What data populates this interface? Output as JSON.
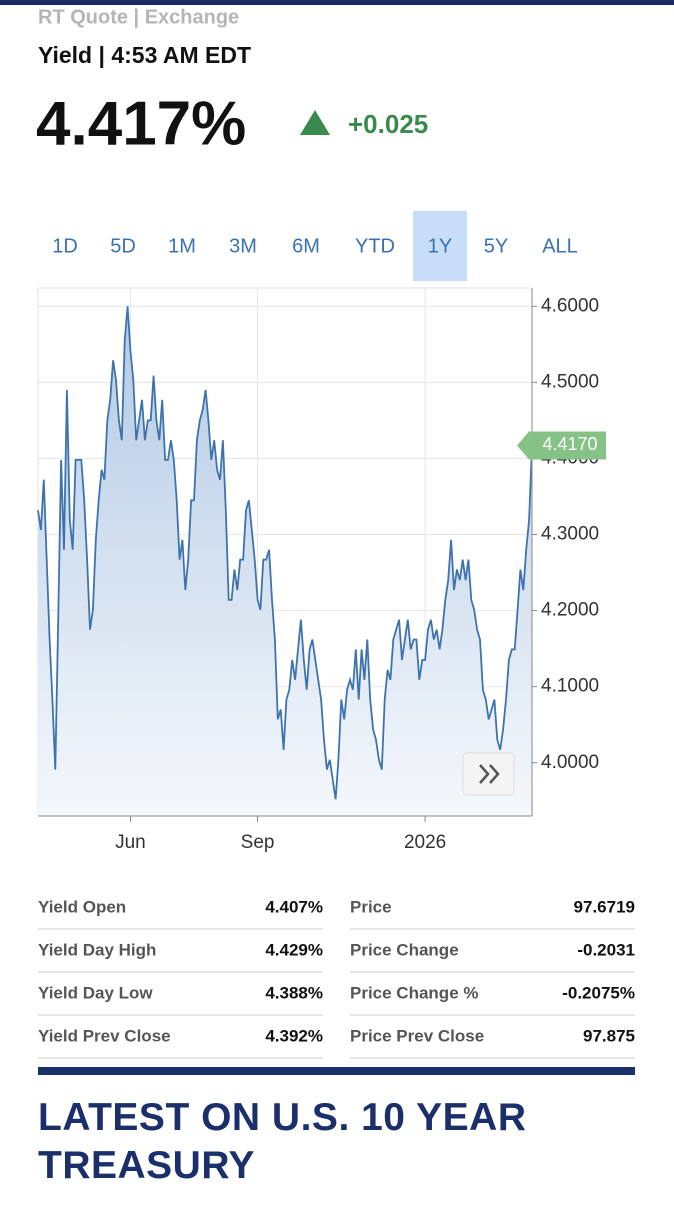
{
  "header": {
    "source": "RT Quote | Exchange",
    "subtitle": "Yield | 4:53 AM EDT",
    "price": "4.417%",
    "change": "+0.025"
  },
  "ranges": {
    "options": [
      "1D",
      "5D",
      "1M",
      "3M",
      "6M",
      "YTD",
      "1Y",
      "5Y",
      "ALL"
    ],
    "selected": 6
  },
  "chart_data": {
    "type": "line",
    "color": "#3f73ad",
    "values": [
      4.332,
      4.306,
      4.372,
      4.267,
      4.162,
      4.083,
      3.991,
      4.188,
      4.398,
      4.28,
      4.49,
      4.319,
      4.28,
      4.398,
      4.398,
      4.398,
      4.345,
      4.267,
      4.175,
      4.201,
      4.293,
      4.345,
      4.385,
      4.372,
      4.45,
      4.477,
      4.529,
      4.503,
      4.45,
      4.424,
      4.555,
      4.6,
      4.542,
      4.503,
      4.424,
      4.45,
      4.477,
      4.424,
      4.45,
      4.45,
      4.509,
      4.45,
      4.424,
      4.477,
      4.398,
      4.398,
      4.424,
      4.398,
      4.345,
      4.267,
      4.293,
      4.227,
      4.267,
      4.345,
      4.345,
      4.424,
      4.45,
      4.464,
      4.49,
      4.45,
      4.398,
      4.424,
      4.385,
      4.372,
      4.424,
      4.332,
      4.214,
      4.214,
      4.254,
      4.227,
      4.267,
      4.267,
      4.332,
      4.345,
      4.306,
      4.267,
      4.214,
      4.201,
      4.267,
      4.267,
      4.28,
      4.214,
      4.162,
      4.057,
      4.07,
      4.017,
      4.083,
      4.096,
      4.135,
      4.109,
      4.149,
      4.188,
      4.135,
      4.096,
      4.149,
      4.162,
      4.135,
      4.109,
      4.083,
      4.03,
      3.991,
      4.004,
      3.978,
      3.952,
      4.004,
      4.083,
      4.057,
      4.096,
      4.109,
      4.096,
      4.149,
      4.083,
      4.149,
      4.109,
      4.162,
      4.083,
      4.044,
      4.03,
      4.004,
      3.991,
      4.083,
      4.122,
      4.109,
      4.162,
      4.175,
      4.188,
      4.135,
      4.162,
      4.188,
      4.149,
      4.162,
      4.162,
      4.109,
      4.135,
      4.135,
      4.175,
      4.188,
      4.162,
      4.175,
      4.149,
      4.175,
      4.214,
      4.24,
      4.293,
      4.227,
      4.254,
      4.24,
      4.267,
      4.24,
      4.267,
      4.214,
      4.201,
      4.175,
      4.162,
      4.096,
      4.083,
      4.057,
      4.07,
      4.083,
      4.03,
      4.017,
      4.044,
      4.083,
      4.135,
      4.149,
      4.149,
      4.201,
      4.254,
      4.227,
      4.28,
      4.319,
      4.417
    ],
    "xlim": [
      0,
      171
    ],
    "xticks": [
      {
        "value": 32,
        "label": "Jun"
      },
      {
        "value": 76,
        "label": "Sep"
      },
      {
        "value": 134,
        "label": "2026"
      }
    ],
    "ylim": [
      3.93,
      4.624
    ],
    "yticks": [
      {
        "value": 4.0,
        "label": "4.0000"
      },
      {
        "value": 4.1,
        "label": "4.1000"
      },
      {
        "value": 4.2,
        "label": "4.2000"
      },
      {
        "value": 4.3,
        "label": "4.3000"
      },
      {
        "value": 4.4,
        "label": "4.4000"
      },
      {
        "value": 4.5,
        "label": "4.5000"
      },
      {
        "value": 4.6,
        "label": "4.6000"
      }
    ],
    "last_value": {
      "value": 4.417,
      "label": "4.4170"
    },
    "grid": true
  },
  "stats": {
    "rows": [
      [
        "Yield Open",
        "4.407%",
        "Price",
        "97.6719"
      ],
      [
        "Yield Day High",
        "4.429%",
        "Price Change",
        "-0.2031"
      ],
      [
        "Yield Day Low",
        "4.388%",
        "Price Change %",
        "-0.2075%"
      ],
      [
        "Yield Prev Close",
        "4.392%",
        "Price Prev Close",
        "97.875"
      ]
    ]
  },
  "section_title": "LATEST ON U.S. 10 YEAR TREASURY"
}
